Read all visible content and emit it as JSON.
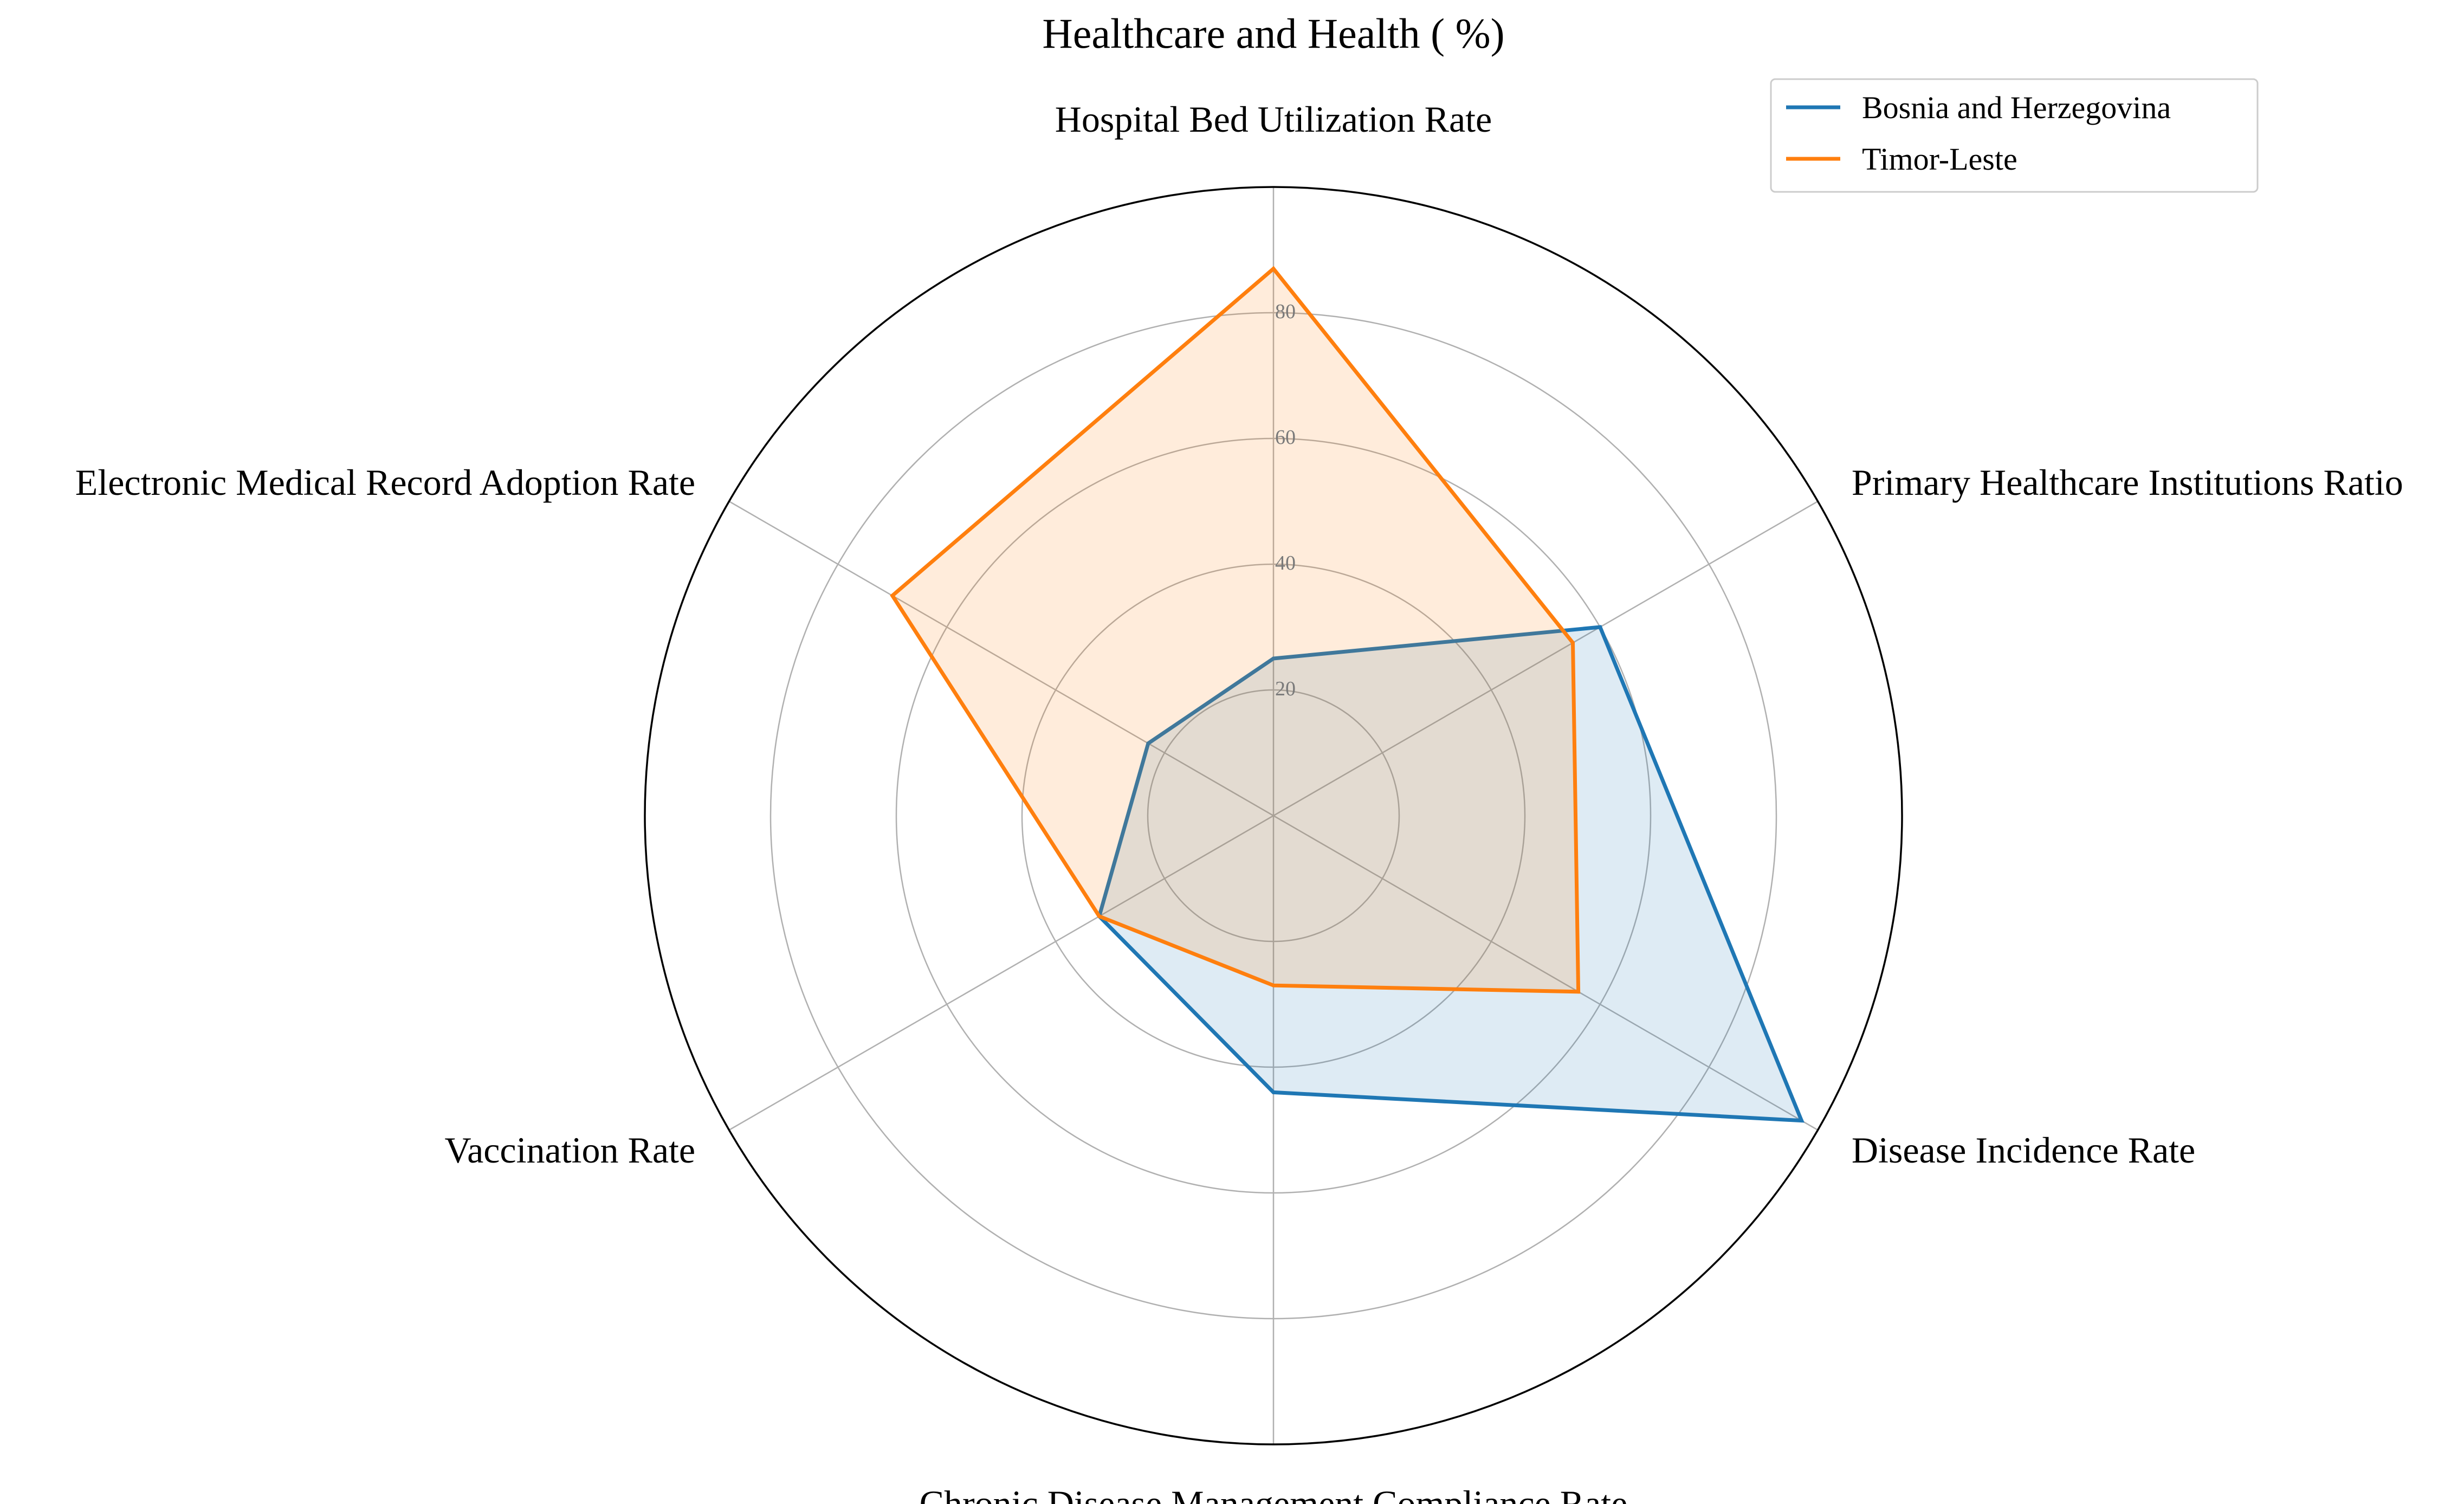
{
  "chart_data": {
    "type": "radar",
    "title": "Healthcare and Health ( %)",
    "axes": [
      "Hospital Bed Utilization Rate",
      "Primary Healthcare Institutions Ratio",
      "Disease Incidence Rate",
      "Chronic Disease Management Compliance Rate",
      "Vaccination Rate",
      "Electronic Medical Record Adoption Rate"
    ],
    "rlim": [
      0,
      100
    ],
    "ticks": [
      20,
      40,
      60,
      80
    ],
    "tick_labels": [
      "20",
      "40",
      "60",
      "80"
    ],
    "grid": true,
    "legend_position": "top-right",
    "series": [
      {
        "name": "Bosnia and Herzegovina",
        "color": "#1f77b4",
        "values": [
          25,
          60,
          97,
          44,
          32,
          23
        ]
      },
      {
        "name": "Timor-Leste",
        "color": "#ff7f0e",
        "values": [
          87,
          55,
          56,
          27,
          32,
          70
        ]
      }
    ]
  }
}
